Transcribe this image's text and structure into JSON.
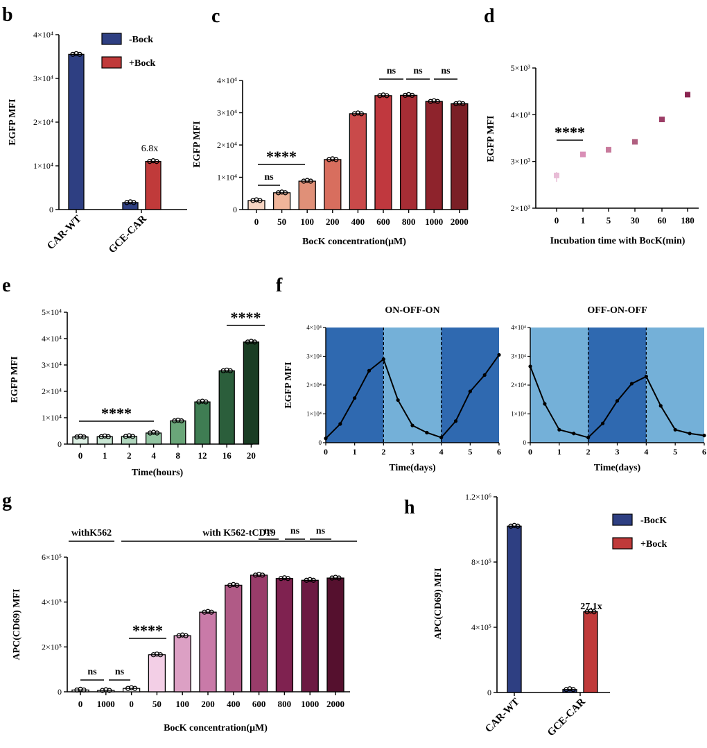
{
  "chart_data": [
    {
      "panel": "b",
      "type": "bar",
      "ylabel": "EGFP MFI",
      "ylim": [
        0,
        40000
      ],
      "yticks": [
        "0",
        "1×10⁴",
        "2×10⁴",
        "3×10⁴",
        "4×10⁴"
      ],
      "categories": [
        "CAR-WT",
        "GCE-CAR"
      ],
      "series": [
        {
          "name": "-Bock",
          "color": "#2e3f82",
          "values": [
            35500,
            1600
          ]
        },
        {
          "name": "+Bock",
          "color": "#c03a3a",
          "values": [
            null,
            11000
          ]
        }
      ],
      "annotations": [
        "6.8x"
      ],
      "legend": "top-right"
    },
    {
      "panel": "c",
      "type": "bar",
      "xlabel": "BocK concentration(μM)",
      "ylabel": "EGFP MFI",
      "ylim": [
        0,
        40000
      ],
      "yticks": [
        "0",
        "1×10⁴",
        "2×10⁴",
        "3×10⁴",
        "4×10⁴"
      ],
      "categories": [
        "0",
        "50",
        "100",
        "200",
        "400",
        "600",
        "800",
        "1000",
        "2000"
      ],
      "values": [
        2800,
        5200,
        8800,
        15500,
        29700,
        35300,
        35400,
        33500,
        32800
      ],
      "colors": [
        "#f7d4c2",
        "#f0b59a",
        "#e09078",
        "#d86e5e",
        "#c94a4a",
        "#c0383e",
        "#a72d35",
        "#8e232c",
        "#7a1f26"
      ],
      "significance": [
        "ns",
        "****",
        "ns",
        "ns",
        "ns"
      ]
    },
    {
      "panel": "d",
      "type": "scatter",
      "xlabel": "Incubation time with BocK(min)",
      "ylabel": "EGFP MFI",
      "ylim": [
        2000,
        5000
      ],
      "yticks": [
        "2×10³",
        "3×10³",
        "4×10³",
        "5×10³"
      ],
      "categories": [
        "0",
        "1",
        "5",
        "30",
        "60",
        "180"
      ],
      "values": [
        2700,
        3150,
        3250,
        3420,
        3900,
        4430
      ],
      "colors": [
        "#e8bcd6",
        "#d98fb6",
        "#c87a9c",
        "#b05f80",
        "#9c3d66",
        "#8a2450"
      ],
      "significance": [
        "****"
      ]
    },
    {
      "panel": "e",
      "type": "bar",
      "xlabel": "Time(hours)",
      "ylabel": "EGFP MFI",
      "ylim": [
        0,
        50000
      ],
      "yticks": [
        "0",
        "1×10⁴",
        "2×10⁴",
        "3×10⁴",
        "4×10⁴",
        "5×10⁴"
      ],
      "categories": [
        "0",
        "1",
        "2",
        "4",
        "8",
        "12",
        "16",
        "20"
      ],
      "values": [
        2700,
        2800,
        2900,
        4200,
        8800,
        16000,
        27800,
        38700
      ],
      "colors": [
        "#dcefe3",
        "#c9e6d3",
        "#b0d6bd",
        "#92c4a1",
        "#6aa679",
        "#3f7d53",
        "#2b5e3b",
        "#1a3d24"
      ],
      "significance": [
        "****",
        "****"
      ]
    },
    {
      "panel": "f",
      "type": "line",
      "xlabel": "Time(days)",
      "ylabel": "EGFP MFI",
      "ylim": [
        0,
        40000
      ],
      "xlim": [
        0,
        6
      ],
      "yticks": [
        "0",
        "1×10⁴",
        "2×10⁴",
        "3×10⁴",
        "4×10⁴"
      ],
      "xticks": [
        "0",
        "1",
        "2",
        "3",
        "4",
        "5",
        "6"
      ],
      "subplots": [
        {
          "title": "ON-OFF-ON",
          "x": [
            0,
            0.5,
            1,
            1.5,
            2,
            2.5,
            3,
            3.5,
            4,
            4.5,
            5,
            5.5,
            6
          ],
          "y": [
            1500,
            6500,
            15500,
            25000,
            29000,
            14800,
            6000,
            3500,
            1800,
            7500,
            17800,
            23500,
            30500
          ],
          "shading": [
            "ON",
            "OFF",
            "ON"
          ]
        },
        {
          "title": "OFF-ON-OFF",
          "x": [
            0,
            0.5,
            1,
            1.5,
            2,
            2.5,
            3,
            3.5,
            4,
            4.5,
            5,
            5.5,
            6
          ],
          "y": [
            26500,
            13500,
            4500,
            3200,
            1800,
            6700,
            14500,
            20500,
            23000,
            12800,
            4500,
            3200,
            2500
          ],
          "shading": [
            "OFF",
            "ON",
            "OFF"
          ]
        }
      ],
      "colors": {
        "on": "#2f69b0",
        "off": "#74b0d8"
      }
    },
    {
      "panel": "g",
      "type": "bar",
      "xlabel": "BocK concentration(μM)",
      "ylabel": "APC(CD69) MFI",
      "ylim": [
        0,
        600000
      ],
      "yticks": [
        "0",
        "2×10⁵",
        "4×10⁵",
        "6×10⁵"
      ],
      "groups": [
        "withK562",
        "with K562-tCD19"
      ],
      "categories": [
        "0",
        "1000",
        "0",
        "50",
        "100",
        "200",
        "400",
        "600",
        "800",
        "1000",
        "2000"
      ],
      "values": [
        8000,
        6000,
        15000,
        165000,
        250000,
        355000,
        475000,
        520000,
        505000,
        497000,
        507000
      ],
      "colors": [
        "#ffffff",
        "#ffffff",
        "#ffffff",
        "#f3cfe6",
        "#dca0c4",
        "#c97aa8",
        "#b05a86",
        "#993c6a",
        "#7f2250",
        "#6c1a42",
        "#55102e"
      ],
      "significance": [
        "ns",
        "ns",
        "****",
        "ns",
        "ns",
        "ns"
      ]
    },
    {
      "panel": "h",
      "type": "bar",
      "ylabel": "APC(CD69) MFI",
      "ylim": [
        0,
        1200000
      ],
      "yticks": [
        "0",
        "4×10⁵",
        "8×10⁵",
        "1.2×10⁶"
      ],
      "categories": [
        "CAR-WT",
        "GCE-CAR"
      ],
      "series": [
        {
          "name": "-BocK",
          "color": "#2e3f82",
          "values": [
            1020000,
            18000
          ]
        },
        {
          "name": "+Bock",
          "color": "#c03a3a",
          "values": [
            null,
            495000
          ]
        }
      ],
      "annotations": [
        "27.1x"
      ],
      "legend": "top-right"
    }
  ]
}
